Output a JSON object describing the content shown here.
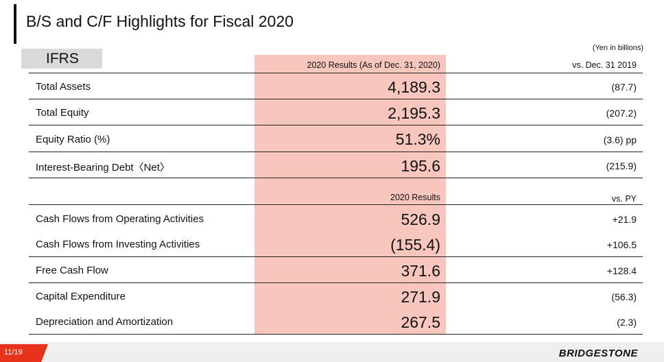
{
  "title": "B/S and C/F Highlights for Fiscal 2020",
  "badge": "IFRS",
  "unit_note": "(Yen in billions)",
  "bs": {
    "col_result": "2020 Results (As of Dec. 31, 2020)",
    "col_delta": "vs. Dec. 31 2019",
    "rows": [
      {
        "label": "Total Assets",
        "value": "4,189.3",
        "delta": "(87.7)"
      },
      {
        "label": "Total Equity",
        "value": "2,195.3",
        "delta": "(207.2)"
      },
      {
        "label": "Equity Ratio (%)",
        "value": "51.3%",
        "delta": "(3.6) pp"
      },
      {
        "label": "Interest-Bearing Debt〈Net〉",
        "value": "195.6",
        "delta": "(215.9)"
      }
    ]
  },
  "cf": {
    "col_result": "2020 Results",
    "col_delta": "vs. PY",
    "rows": [
      {
        "label": "Cash Flows from Operating Activities",
        "value": "526.9",
        "delta": "+21.9"
      },
      {
        "label": "Cash Flows from Investing Activities",
        "value": "(155.4)",
        "delta": "+106.5"
      },
      {
        "label": "Free Cash Flow",
        "value": "371.6",
        "delta": "+128.4"
      },
      {
        "label": "Capital Expenditure",
        "value": "271.9",
        "delta": "(56.3)"
      },
      {
        "label": "Depreciation and Amortization",
        "value": "267.5",
        "delta": "(2.3)"
      }
    ]
  },
  "footer": {
    "page": "11/19",
    "logo": "BRIDGESTONE"
  },
  "colors": {
    "highlight": "#f8c6bd",
    "page_tab": "#e8331c",
    "badge_bg": "#d9d9d9"
  }
}
